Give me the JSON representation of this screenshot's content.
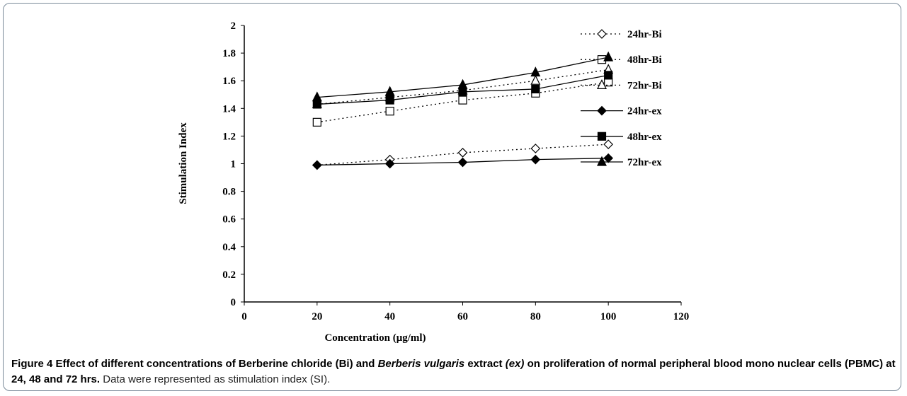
{
  "chart_data": {
    "type": "line",
    "xlabel": "Concentration  (μg/ml)",
    "ylabel": "Stimulation Index",
    "x": [
      20,
      40,
      60,
      80,
      100
    ],
    "xlim": [
      0,
      120
    ],
    "xticks": [
      0,
      20,
      40,
      60,
      80,
      100,
      120
    ],
    "ylim": [
      0,
      2
    ],
    "yticks": [
      0,
      0.2,
      0.4,
      0.6,
      0.8,
      1,
      1.2,
      1.4,
      1.6,
      1.8,
      2
    ],
    "grid": false,
    "legend": "right",
    "series": [
      {
        "name": "24hr-Bi",
        "color": "#000000",
        "marker": "diamond",
        "filled": false,
        "line": "dotted",
        "values": [
          0.99,
          1.03,
          1.08,
          1.11,
          1.14
        ]
      },
      {
        "name": "48hr-Bi",
        "color": "#000000",
        "marker": "square",
        "filled": false,
        "line": "dotted",
        "values": [
          1.3,
          1.38,
          1.46,
          1.51,
          1.59
        ]
      },
      {
        "name": "72hr-Bi",
        "color": "#000000",
        "marker": "triangle",
        "filled": false,
        "line": "dotted",
        "values": [
          1.43,
          1.48,
          1.53,
          1.6,
          1.68
        ]
      },
      {
        "name": "24hr-ex",
        "color": "#000000",
        "marker": "diamond",
        "filled": true,
        "line": "solid",
        "values": [
          0.99,
          1.0,
          1.01,
          1.03,
          1.04
        ]
      },
      {
        "name": "48hr-ex",
        "color": "#000000",
        "marker": "square",
        "filled": true,
        "line": "solid",
        "values": [
          1.43,
          1.46,
          1.52,
          1.54,
          1.64
        ]
      },
      {
        "name": "72hr-ex",
        "color": "#000000",
        "marker": "triangle",
        "filled": true,
        "line": "solid",
        "values": [
          1.48,
          1.52,
          1.57,
          1.66,
          1.77
        ]
      }
    ]
  },
  "caption": {
    "label": "Figure 4",
    "part1": "Effect of different concentrations of Berberine chloride (Bi) and",
    "italic1": "Berberis vulgaris",
    "part2": "extract",
    "italic2": "(ex)",
    "part3": "on proliferation of normal peripheral blood mono nuclear cells (PBMC) at 24, 48 and 72 hrs.",
    "note": "Data were represented as stimulation index (SI)."
  }
}
